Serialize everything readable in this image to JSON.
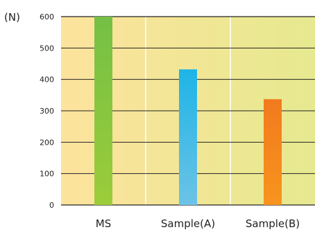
{
  "chart_data": {
    "type": "bar",
    "title": "",
    "xlabel": "",
    "ylabel": "(N)",
    "categories": [
      "MS",
      "Sample(A)",
      "Sample(B)"
    ],
    "values": [
      600,
      432,
      337
    ],
    "ylim": [
      0,
      600
    ],
    "yticks": [
      "0",
      "100",
      "200",
      "300",
      "400",
      "500",
      "600"
    ],
    "grid": true,
    "legend": "none",
    "colors": {
      "bar_MS": [
        "#74c045",
        "#9ccc3a"
      ],
      "bar_Sample(A)": [
        "#1eb4e6",
        "#6cc3e6"
      ],
      "bar_Sample(B)": [
        "#f27a1e",
        "#f7941e"
      ],
      "background_left": "#fde39d",
      "background_right": "#e6e98f",
      "gridline": "#222222"
    }
  }
}
